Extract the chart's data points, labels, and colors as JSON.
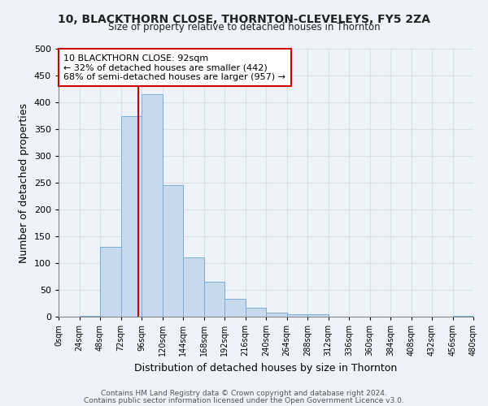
{
  "title1": "10, BLACKTHORN CLOSE, THORNTON-CLEVELEYS, FY5 2ZA",
  "title2": "Size of property relative to detached houses in Thornton",
  "xlabel": "Distribution of detached houses by size in Thornton",
  "ylabel": "Number of detached properties",
  "footer1": "Contains HM Land Registry data © Crown copyright and database right 2024.",
  "footer2": "Contains public sector information licensed under the Open Government Licence v3.0.",
  "bin_edges": [
    0,
    24,
    48,
    72,
    96,
    120,
    144,
    168,
    192,
    216,
    240,
    264,
    288,
    312,
    336,
    360,
    384,
    408,
    432,
    456,
    480
  ],
  "bin_counts": [
    0,
    2,
    130,
    375,
    415,
    245,
    110,
    65,
    33,
    16,
    7,
    5,
    5,
    0,
    0,
    0,
    0,
    0,
    0,
    2
  ],
  "bar_color": "#c8d8ed",
  "bar_edge_color": "#7aaed4",
  "property_size": 92,
  "vline_color": "#cc0000",
  "annotation_text": "10 BLACKTHORN CLOSE: 92sqm\n← 32% of detached houses are smaller (442)\n68% of semi-detached houses are larger (957) →",
  "annotation_box_color": "#ffffff",
  "annotation_box_edge": "#cc0000",
  "ylim": [
    0,
    500
  ],
  "xlim": [
    0,
    480
  ],
  "tick_labels": [
    "0sqm",
    "24sqm",
    "48sqm",
    "72sqm",
    "96sqm",
    "120sqm",
    "144sqm",
    "168sqm",
    "192sqm",
    "216sqm",
    "240sqm",
    "264sqm",
    "288sqm",
    "312sqm",
    "336sqm",
    "360sqm",
    "384sqm",
    "408sqm",
    "432sqm",
    "456sqm",
    "480sqm"
  ],
  "background_color": "#eef2f9",
  "grid_color": "#d8e0ec",
  "yticks": [
    0,
    50,
    100,
    150,
    200,
    250,
    300,
    350,
    400,
    450,
    500
  ]
}
